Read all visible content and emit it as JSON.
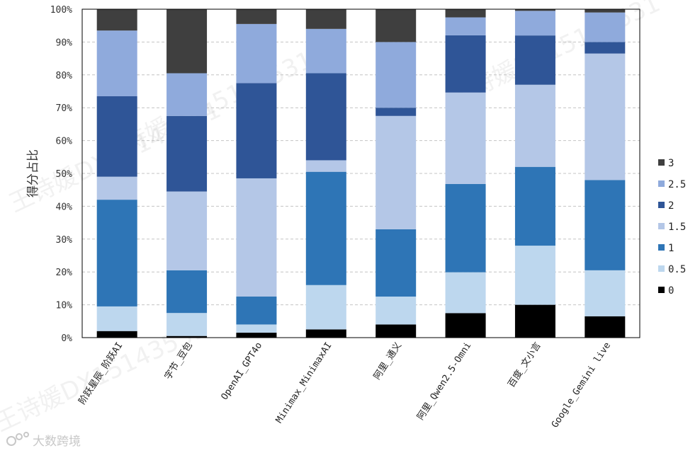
{
  "chart_data": {
    "type": "bar",
    "stacked": true,
    "normalized": true,
    "ylabel": "得分占比",
    "ylim": [
      0,
      100
    ],
    "yticks": [
      "0%",
      "10%",
      "20%",
      "30%",
      "40%",
      "50%",
      "60%",
      "70%",
      "80%",
      "90%",
      "100%"
    ],
    "grid": "horizontal-dashed",
    "legend_position": "right",
    "categories": [
      "阶跃星辰_阶跃AI",
      "字节_豆包",
      "OpenAI_GPT4o",
      "Minimax_MinimaxAI",
      "阿里_通义",
      "阿里_Qwen2.5-Omni",
      "百度_文小言",
      "Google_Gemini live"
    ],
    "series": [
      {
        "name": "0",
        "color": "#000000",
        "values": [
          2,
          0.5,
          1.5,
          2.5,
          4,
          7.5,
          10,
          6.5
        ]
      },
      {
        "name": "0.5",
        "color": "#bdd7ee",
        "values": [
          7.5,
          7,
          2.5,
          13.5,
          8.5,
          12.5,
          18,
          14
        ]
      },
      {
        "name": "1",
        "color": "#2e75b6",
        "values": [
          32.5,
          13,
          8.5,
          34.5,
          20.5,
          27,
          24,
          27.5
        ]
      },
      {
        "name": "1.5",
        "color": "#b4c7e7",
        "values": [
          7,
          24,
          36,
          3.5,
          34.5,
          28,
          25,
          38.5
        ]
      },
      {
        "name": "2",
        "color": "#2f5597",
        "values": [
          24.5,
          23,
          29,
          26.5,
          2.5,
          17.5,
          15,
          3.5
        ]
      },
      {
        "name": "2.5",
        "color": "#8faadc",
        "values": [
          20,
          13,
          18,
          13.5,
          20,
          5.5,
          7.5,
          9
        ]
      },
      {
        "name": "3",
        "color": "#3f3f3f",
        "values": [
          6.5,
          19.5,
          4.5,
          6,
          10,
          2.5,
          0.5,
          1
        ]
      }
    ]
  },
  "watermarks": [
    "王诗媛DX15143531",
    "王诗媛DX15143531",
    "王诗媛DX15143531",
    "王诗媛DX15143531"
  ],
  "logo": {
    "text": "大数跨境",
    "icon": "brand-logo-icon"
  }
}
